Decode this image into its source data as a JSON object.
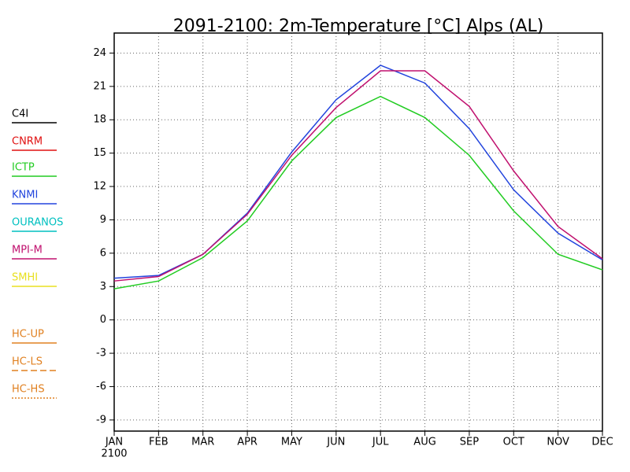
{
  "chart_data": {
    "type": "line",
    "title": "2091-2100: 2m-Temperature [°C] Alps (AL)",
    "categories": [
      "JAN",
      "FEB",
      "MAR",
      "APR",
      "MAY",
      "JUN",
      "JUL",
      "AUG",
      "SEP",
      "OCT",
      "NOV",
      "DEC"
    ],
    "year_label": "2100",
    "ylim": [
      -10,
      25.8
    ],
    "yticks": [
      -9,
      -6,
      -3,
      0,
      3,
      6,
      9,
      12,
      15,
      18,
      21,
      24
    ],
    "grid": true,
    "legend": "left",
    "series": [
      {
        "name": "C4I",
        "color": "#000000",
        "style": "solid",
        "values": [
          null,
          null,
          null,
          null,
          null,
          null,
          null,
          null,
          null,
          null,
          null,
          null
        ]
      },
      {
        "name": "CNRM",
        "color": "#e01010",
        "style": "solid",
        "values": [
          null,
          null,
          null,
          null,
          null,
          null,
          null,
          null,
          null,
          null,
          null,
          null
        ]
      },
      {
        "name": "ICTP",
        "color": "#22cc22",
        "style": "solid",
        "values": [
          2.8,
          3.5,
          5.6,
          8.9,
          14.3,
          18.2,
          20.1,
          18.2,
          14.8,
          9.8,
          5.9,
          4.5
        ]
      },
      {
        "name": "KNMI",
        "color": "#2244dd",
        "style": "solid",
        "values": [
          3.75,
          4.0,
          5.9,
          9.6,
          15.1,
          19.8,
          22.9,
          21.3,
          17.2,
          11.7,
          7.8,
          5.4
        ]
      },
      {
        "name": "OURANOS",
        "color": "#00c0c0",
        "style": "solid",
        "values": [
          null,
          null,
          null,
          null,
          null,
          null,
          null,
          null,
          null,
          null,
          null,
          null
        ]
      },
      {
        "name": "MPI-M",
        "color": "#c0106e",
        "style": "solid",
        "values": [
          3.5,
          3.9,
          5.9,
          9.5,
          14.8,
          19.1,
          22.4,
          22.4,
          19.2,
          13.4,
          8.4,
          5.5
        ]
      },
      {
        "name": "SMHI",
        "color": "#e8e020",
        "style": "solid",
        "values": [
          null,
          null,
          null,
          null,
          null,
          null,
          null,
          null,
          null,
          null,
          null,
          null
        ]
      },
      {
        "name": "HC-UP",
        "color": "#e08020",
        "style": "solid",
        "values": [
          null,
          null,
          null,
          null,
          null,
          null,
          null,
          null,
          null,
          null,
          null,
          null
        ]
      },
      {
        "name": "HC-LS",
        "color": "#e08020",
        "style": "dashed",
        "values": [
          null,
          null,
          null,
          null,
          null,
          null,
          null,
          null,
          null,
          null,
          null,
          null
        ]
      },
      {
        "name": "HC-HS",
        "color": "#e08020",
        "style": "dotted",
        "values": [
          null,
          null,
          null,
          null,
          null,
          null,
          null,
          null,
          null,
          null,
          null,
          null
        ]
      }
    ]
  }
}
